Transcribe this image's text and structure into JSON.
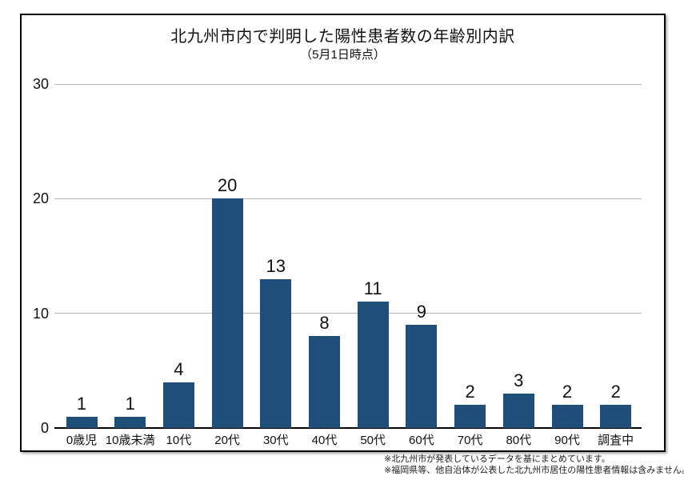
{
  "chart_data": {
    "type": "bar",
    "title": "北九州市内で判明した陽性患者数の年齢別内訳",
    "subtitle": "（5月1日時点）",
    "categories": [
      "0歳児",
      "10歳未満",
      "10代",
      "20代",
      "30代",
      "40代",
      "50代",
      "60代",
      "70代",
      "80代",
      "90代",
      "調査中"
    ],
    "values": [
      1,
      1,
      4,
      20,
      13,
      8,
      11,
      9,
      2,
      3,
      2,
      2
    ],
    "xlabel": "",
    "ylabel": "",
    "ylim": [
      0,
      30
    ],
    "yticks": [
      0,
      10,
      20,
      30
    ],
    "grid": true,
    "legend": "none",
    "bar_color": "#1F4E7B",
    "gridline_color": "#b3b3b3",
    "axis_line_color": "#000000"
  },
  "footnotes": [
    "※北九州市が発表しているデータを基にまとめています。",
    "※福岡県等、他自治体が公表した北九州市居住の陽性患者情報は含みません。"
  ]
}
